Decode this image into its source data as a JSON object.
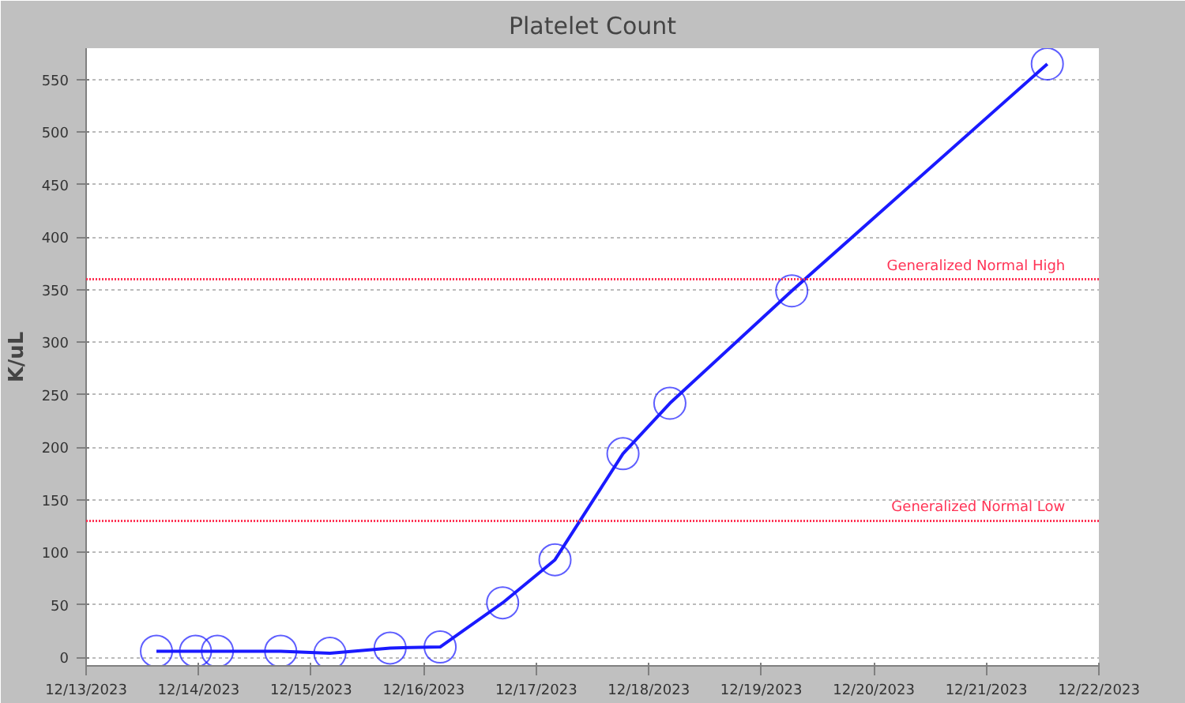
{
  "chart_data": {
    "type": "line",
    "title": "Platelet Count",
    "ylabel": "K/uL",
    "x": [
      "2023-12-13T15:00",
      "2023-12-13T23:20",
      "2023-12-14T04:00",
      "2023-12-14T17:30",
      "2023-12-15T04:00",
      "2023-12-15T16:50",
      "2023-12-16T03:30",
      "2023-12-16T16:50",
      "2023-12-17T04:00",
      "2023-12-17T18:30",
      "2023-12-18T04:30",
      "2023-12-19T06:30",
      "2023-12-21T13:00"
    ],
    "series": [
      {
        "color": "#1a1aff",
        "values": [
          6,
          6,
          6,
          6,
          4,
          9,
          10,
          52,
          93,
          194,
          242,
          349,
          565
        ]
      }
    ],
    "xlim": [
      "2023-12-13",
      "2023-12-22"
    ],
    "xticks": [
      {
        "value": "2023-12-13",
        "label": "12/13/2023"
      },
      {
        "value": "2023-12-14",
        "label": "12/14/2023"
      },
      {
        "value": "2023-12-15",
        "label": "12/15/2023"
      },
      {
        "value": "2023-12-16",
        "label": "12/16/2023"
      },
      {
        "value": "2023-12-17",
        "label": "12/17/2023"
      },
      {
        "value": "2023-12-18",
        "label": "12/18/2023"
      },
      {
        "value": "2023-12-19",
        "label": "12/19/2023"
      },
      {
        "value": "2023-12-20",
        "label": "12/20/2023"
      },
      {
        "value": "2023-12-21",
        "label": "12/21/2023"
      },
      {
        "value": "2023-12-22",
        "label": "12/22/2023"
      }
    ],
    "ylim": [
      -8,
      580
    ],
    "yticks": [
      0,
      50,
      100,
      150,
      200,
      250,
      300,
      350,
      400,
      450,
      500,
      550
    ],
    "ref_lines": [
      {
        "axis": "y",
        "value": 360,
        "label": "Generalized Normal High",
        "color": "#ff3355",
        "line_style": "dotted"
      },
      {
        "axis": "y",
        "value": 130,
        "label": "Generalized Normal Low",
        "color": "#ff3355",
        "line_style": "dotted"
      }
    ],
    "grid": "y",
    "marker": "circle",
    "line_style": "solid"
  }
}
